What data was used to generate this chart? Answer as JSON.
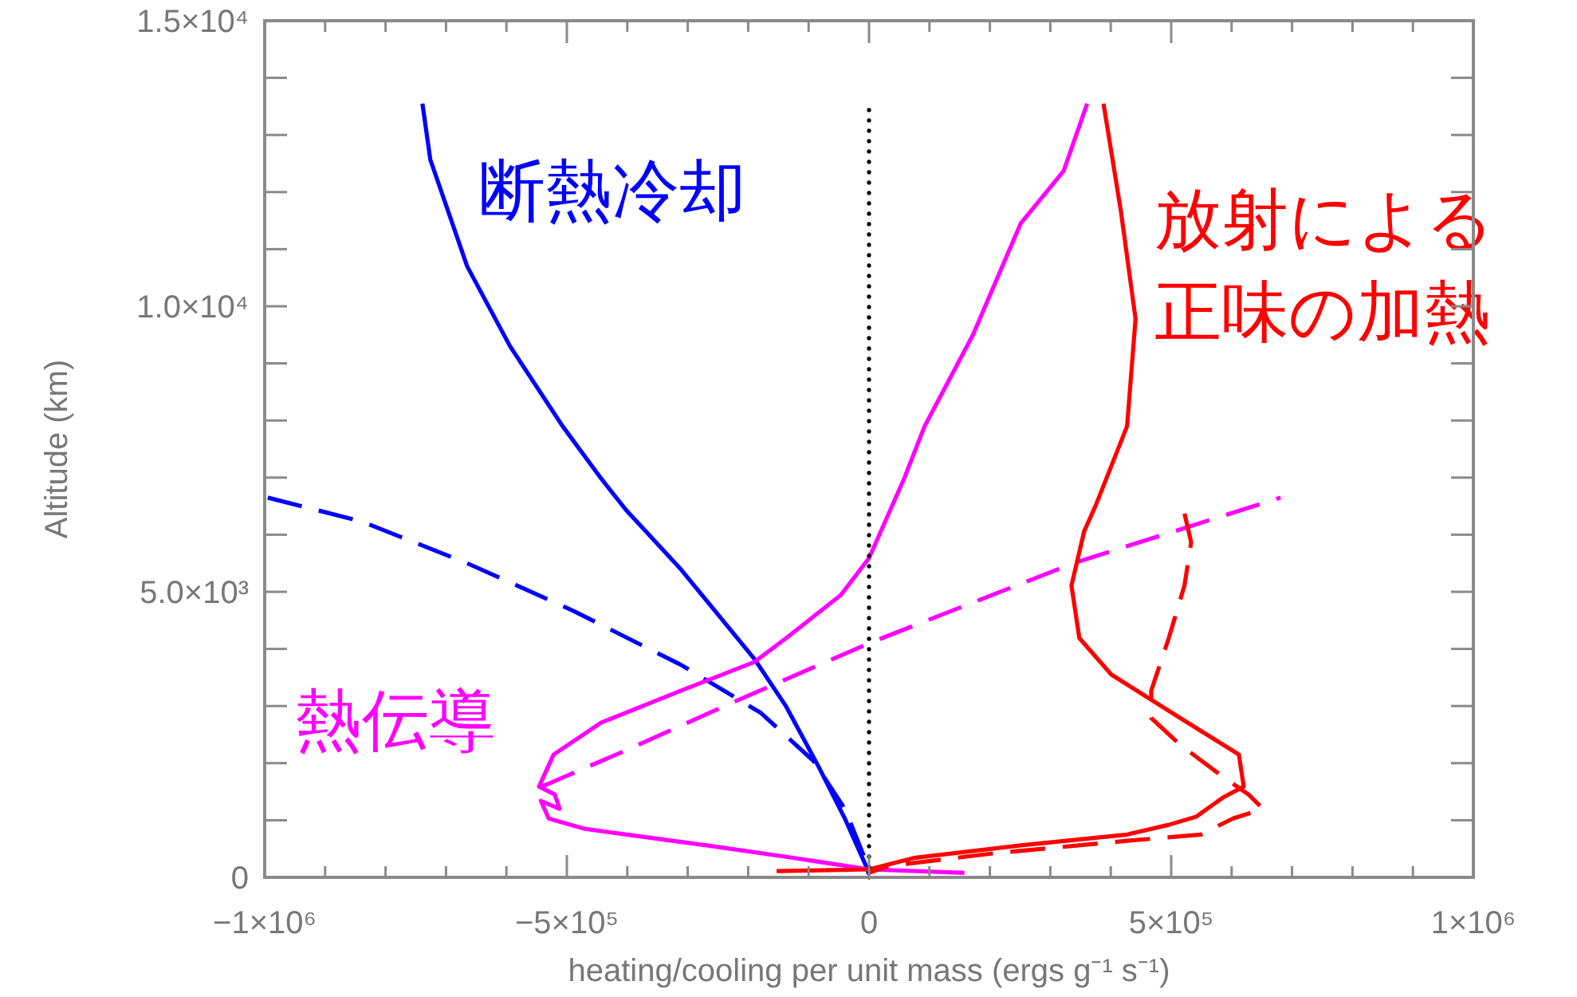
{
  "chart_data": {
    "type": "line",
    "xlabel": "heating/cooling per unit mass (ergs g⁻¹ s⁻¹)",
    "ylabel": "Altitude (km)",
    "xlim": [
      -1000000,
      1000000
    ],
    "ylim": [
      0,
      15000
    ],
    "xticks": [
      {
        "value": -1000000,
        "label": "−1×10⁶"
      },
      {
        "value": -900000,
        "label": null
      },
      {
        "value": -800000,
        "label": null
      },
      {
        "value": -700000,
        "label": null
      },
      {
        "value": -600000,
        "label": null
      },
      {
        "value": -500000,
        "label": "−5×10⁵"
      },
      {
        "value": -400000,
        "label": null
      },
      {
        "value": -300000,
        "label": null
      },
      {
        "value": -200000,
        "label": null
      },
      {
        "value": -100000,
        "label": null
      },
      0,
      {
        "value": 100000,
        "label": null
      },
      {
        "value": 200000,
        "label": null
      },
      {
        "value": 300000,
        "label": null
      },
      {
        "value": 400000,
        "label": null
      },
      {
        "value": 500000,
        "label": "5×10⁵"
      },
      {
        "value": 600000,
        "label": null
      },
      {
        "value": 700000,
        "label": null
      },
      {
        "value": 800000,
        "label": null
      },
      {
        "value": 900000,
        "label": null
      },
      {
        "value": 1000000,
        "label": "1×10⁶"
      }
    ],
    "yticks": [
      0,
      {
        "value": 1000,
        "label": null
      },
      {
        "value": 2000,
        "label": null
      },
      {
        "value": 3000,
        "label": null
      },
      {
        "value": 4000,
        "label": null
      },
      {
        "value": 5000,
        "label": "5.0×10³"
      },
      {
        "value": 6000,
        "label": null
      },
      {
        "value": 7000,
        "label": null
      },
      {
        "value": 8000,
        "label": null
      },
      {
        "value": 9000,
        "label": null
      },
      {
        "value": 10000,
        "label": "1.0×10⁴"
      },
      {
        "value": 11000,
        "label": null
      },
      {
        "value": 12000,
        "label": null
      },
      {
        "value": 13000,
        "label": null
      },
      {
        "value": 14000,
        "label": null
      },
      {
        "value": 15000,
        "label": "1.5×10⁴"
      }
    ],
    "grid": false,
    "ref_lines": [
      {
        "axis": "x",
        "value": 0,
        "color": "#000000",
        "line_style": "dotted"
      }
    ],
    "series": [
      {
        "name": "断熱冷却",
        "color": "#0000ff",
        "line_style": "solid",
        "x": [
          -739000,
          -726000,
          -665000,
          -594000,
          -507000,
          -443000,
          -401000,
          -311000,
          -190000,
          -137000,
          -84000,
          -40000,
          -5000,
          0
        ],
        "values": [
          13550,
          12570,
          10700,
          9300,
          7900,
          6980,
          6420,
          5390,
          3830,
          2990,
          1950,
          1030,
          200,
          50
        ]
      },
      {
        "color": "#0000ff",
        "line_style": "dashed",
        "x": [
          -995000,
          -839000,
          -665000,
          -488000,
          -311000,
          -179000,
          -92000,
          -40000,
          -5000
        ],
        "values": [
          6650,
          6230,
          5500,
          4660,
          3720,
          2880,
          2040,
          1200,
          280
        ]
      },
      {
        "name": "熱伝導",
        "color": "#ff00ff",
        "line_style": "solid",
        "x": [
          361000,
          322000,
          251000,
          172000,
          92000,
          58000,
          0,
          -47000,
          -137000,
          -190000,
          -311000,
          -443000,
          -522000,
          -546000,
          -520000,
          -512000,
          -543000,
          -530000,
          -470000,
          -401000,
          -269000,
          -137000,
          0,
          158000
        ],
        "values": [
          13550,
          12370,
          11450,
          9500,
          7900,
          6980,
          5590,
          4940,
          4190,
          3770,
          3270,
          2710,
          2150,
          1590,
          1450,
          1200,
          1340,
          1030,
          850,
          750,
          560,
          360,
          140,
          80
        ]
      },
      {
        "color": "#ff00ff",
        "line_style": "dashed",
        "x": [
          -541000,
          -401000,
          -224000,
          0,
          338000,
          681000
        ],
        "values": [
          1590,
          2230,
          3070,
          4100,
          5500,
          6650
        ]
      },
      {
        "name": "放射による正味の加熱",
        "color": "#ff0000",
        "line_style": "solid",
        "x": [
          388000,
          417000,
          441000,
          427000,
          375000,
          356000,
          335000,
          348000,
          401000,
          515000,
          612000,
          620000,
          586000,
          541000,
          496000,
          427000,
          251000,
          74000,
          0,
          -153000
        ],
        "values": [
          13550,
          11650,
          9780,
          7900,
          6510,
          6060,
          5110,
          4190,
          3550,
          2790,
          2150,
          1590,
          1400,
          1060,
          920,
          750,
          560,
          340,
          140,
          110
        ]
      },
      {
        "color": "#ff0000",
        "line_style": "dashed",
        "x": [
          522000,
          533000,
          522000,
          496000,
          467000,
          467000,
          515000,
          586000,
          628000,
          652000,
          602000,
          549000,
          427000,
          206000,
          32000,
          0
        ],
        "values": [
          6370,
          5870,
          5110,
          4190,
          3270,
          2790,
          2320,
          1760,
          1450,
          1200,
          1030,
          750,
          640,
          420,
          200,
          80
        ]
      }
    ]
  }
}
